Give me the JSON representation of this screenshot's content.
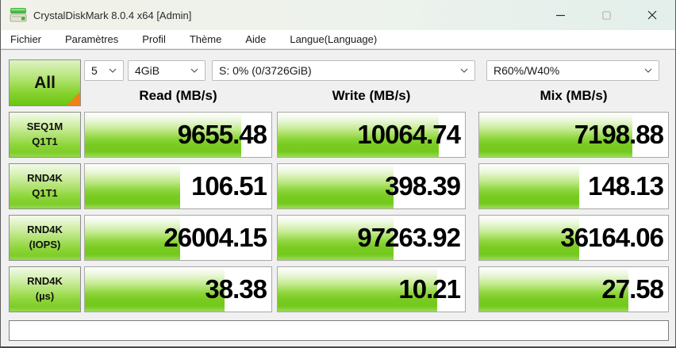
{
  "window": {
    "title": "CrystalDiskMark 8.0.4 x64 [Admin]"
  },
  "menu_bar": {
    "items": [
      "Fichier",
      "Paramètres",
      "Profil",
      "Thème",
      "Aide",
      "Langue(Language)"
    ]
  },
  "toolbar": {
    "all_button_label": "All",
    "test_count": "5",
    "test_size": "4GiB",
    "target_drive": "S: 0% (0/3726GiB)",
    "mix_ratio": "R60%/W40%"
  },
  "results": {
    "column_headers": [
      "Read (MB/s)",
      "Write (MB/s)",
      "Mix (MB/s)"
    ],
    "rows": [
      {
        "label": [
          "SEQ1M",
          "Q1T1"
        ],
        "cells": [
          {
            "value": "9655.48",
            "fill_percent": 84
          },
          {
            "value": "10064.74",
            "fill_percent": 86
          },
          {
            "value": "7198.88",
            "fill_percent": 81
          }
        ]
      },
      {
        "label": [
          "RND4K",
          "Q1T1"
        ],
        "cells": [
          {
            "value": "106.51",
            "fill_percent": 51
          },
          {
            "value": "398.39",
            "fill_percent": 62
          },
          {
            "value": "148.13",
            "fill_percent": 53
          }
        ]
      },
      {
        "label": [
          "RND4K",
          "(IOPS)"
        ],
        "cells": [
          {
            "value": "26004.15",
            "fill_percent": 51
          },
          {
            "value": "97263.92",
            "fill_percent": 62
          },
          {
            "value": "36164.06",
            "fill_percent": 53
          }
        ]
      },
      {
        "label": [
          "RND4K",
          "(µs)"
        ],
        "cells": [
          {
            "value": "38.38",
            "fill_percent": 75
          },
          {
            "value": "10.21",
            "fill_percent": 85
          },
          {
            "value": "27.58",
            "fill_percent": 79
          }
        ]
      }
    ]
  },
  "status_bar": {
    "text": ""
  },
  "colors": {
    "accent_green": "#7ccd26",
    "corner_orange": "#ef8318",
    "titlebar_tint": "#edf2ec"
  }
}
